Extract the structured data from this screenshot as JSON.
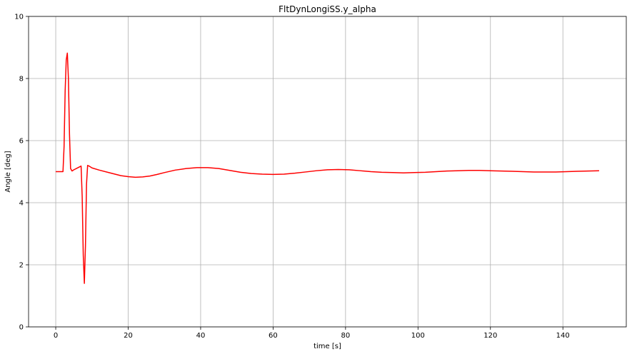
{
  "chart_data": {
    "type": "line",
    "title": "FltDynLongiSS.y_alpha",
    "xlabel": "time [s]",
    "ylabel": "Angle [deg]",
    "xlim": [
      -7.5,
      157.5
    ],
    "ylim": [
      0,
      10
    ],
    "xticks": [
      0,
      20,
      40,
      60,
      80,
      100,
      120,
      140
    ],
    "yticks": [
      0,
      2,
      4,
      6,
      8,
      10
    ],
    "grid": true,
    "series": [
      {
        "color": "#ff0000",
        "x": [
          0,
          2,
          2.3,
          2.6,
          2.9,
          3.2,
          3.5,
          3.8,
          4.1,
          4.5,
          5,
          6,
          7,
          7.3,
          7.6,
          7.9,
          8.2,
          8.5,
          8.8,
          9.2,
          10,
          12,
          15,
          18,
          20,
          22,
          24,
          26,
          28,
          30,
          33,
          36,
          39,
          42,
          45,
          48,
          51,
          54,
          57,
          60,
          63,
          66,
          69,
          72,
          75,
          78,
          81,
          84,
          87,
          90,
          93,
          96,
          99,
          102,
          105,
          108,
          111,
          114,
          117,
          120,
          123,
          126,
          129,
          132,
          135,
          138,
          141,
          144,
          147,
          150
        ],
        "y": [
          5.0,
          5.0,
          5.8,
          7.6,
          8.6,
          8.82,
          8.0,
          6.2,
          5.1,
          5.02,
          5.06,
          5.12,
          5.18,
          4.2,
          2.3,
          1.4,
          2.6,
          4.6,
          5.2,
          5.18,
          5.12,
          5.05,
          4.96,
          4.87,
          4.84,
          4.82,
          4.83,
          4.86,
          4.91,
          4.97,
          5.05,
          5.1,
          5.13,
          5.13,
          5.1,
          5.04,
          4.98,
          4.94,
          4.92,
          4.91,
          4.92,
          4.95,
          4.99,
          5.03,
          5.06,
          5.07,
          5.06,
          5.03,
          5.0,
          4.98,
          4.97,
          4.96,
          4.97,
          4.98,
          5.0,
          5.02,
          5.03,
          5.04,
          5.04,
          5.03,
          5.02,
          5.01,
          5.0,
          4.99,
          4.99,
          4.99,
          5.0,
          5.01,
          5.02,
          5.03
        ]
      }
    ]
  }
}
